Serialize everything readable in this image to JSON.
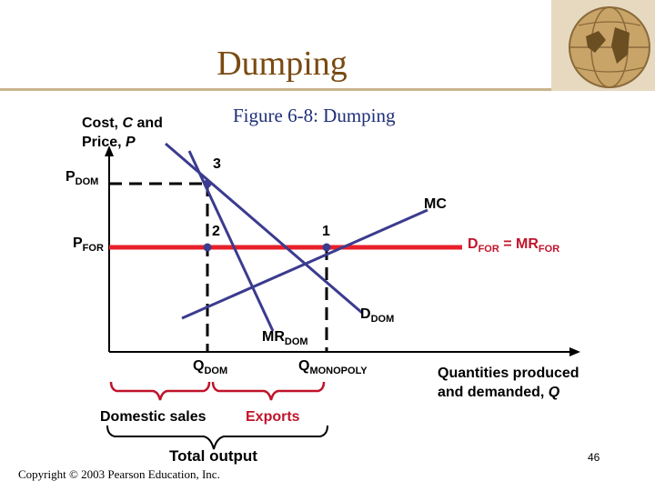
{
  "slide": {
    "title": "Dumping",
    "caption_prefix": "Figure 6-8",
    "caption_suffix": ": Dumping",
    "page_number": "46",
    "copyright": "Copyright © 2003 Pearson Education, Inc."
  },
  "axes": {
    "y_line1_a": "Cost, ",
    "y_line1_var": "C",
    "y_line1_b": " and",
    "y_line2_a": "Price, ",
    "y_line2_var": "P",
    "x_line1": "Quantities produced",
    "x_line2_a": "and demanded, ",
    "x_line2_var": "Q"
  },
  "labels": {
    "p_dom_main": "P",
    "p_dom_sub": "DOM",
    "p_for_main": "P",
    "p_for_sub": "FOR",
    "point3": "3",
    "point2": "2",
    "point1": "1",
    "mc": "MC",
    "dfor_main": "D",
    "dfor_sub": "FOR",
    "dfor_eq": " = MR",
    "dfor_sub2": "FOR",
    "ddom_main": "D",
    "ddom_sub": "DOM",
    "mrdom_main": "MR",
    "mrdom_sub": "DOM",
    "qdom_main": "Q",
    "qdom_sub": "DOM",
    "qmono_main": "Q",
    "qmono_sub": "MONOPOLY",
    "domestic_sales": "Domestic sales",
    "exports": "Exports",
    "total_output": "Total output"
  },
  "colors": {
    "curves": "#3b3b8f",
    "foreign_demand": "#e8202a",
    "braces": "#c0142b",
    "title": "#7a4a12",
    "caption": "#1f2f78"
  }
}
